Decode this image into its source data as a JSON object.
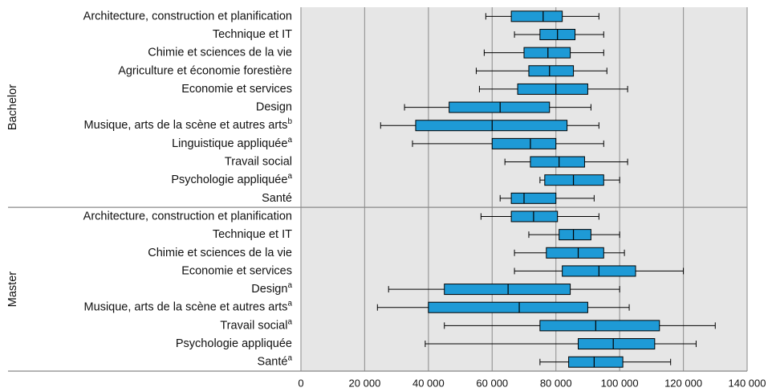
{
  "chart_data": {
    "type": "boxplot",
    "xlim": [
      0,
      140000
    ],
    "xticks": [
      0,
      {
        "value": 20000,
        "label": "20 000"
      },
      {
        "value": 40000,
        "label": "40 000"
      },
      {
        "value": 60000,
        "label": "60 000"
      },
      {
        "value": 80000,
        "label": "80 000"
      },
      {
        "value": 100000,
        "label": "100 000"
      },
      {
        "value": 120000,
        "label": "120 000"
      },
      {
        "value": 140000,
        "label": "140 000"
      }
    ],
    "grid": true,
    "color": "#1e9ad6",
    "groups": [
      {
        "name": "Bachelor",
        "categories": [
          "Architecture, construction et planification",
          "Technique et IT",
          "Chimie et sciences de la vie",
          "Agriculture et économie forestière",
          "Economie et services",
          "Design",
          "Musique, arts de la scène et autres arts",
          "Linguistique appliquée",
          "Travail social",
          "Psychologie appliquée",
          "Santé"
        ],
        "notes": [
          null,
          null,
          null,
          null,
          null,
          null,
          "b",
          "a",
          null,
          "a",
          null
        ],
        "boxes": [
          {
            "low": 58000,
            "q1": 66000,
            "median": 76000,
            "q3": 82000,
            "high": 93500
          },
          {
            "low": 67000,
            "q1": 75000,
            "median": 80500,
            "q3": 86000,
            "high": 95000
          },
          {
            "low": 57500,
            "q1": 70000,
            "median": 77500,
            "q3": 84500,
            "high": 95000
          },
          {
            "low": 55000,
            "q1": 71500,
            "median": 78000,
            "q3": 85500,
            "high": 96000
          },
          {
            "low": 56000,
            "q1": 68000,
            "median": 80000,
            "q3": 90000,
            "high": 102500
          },
          {
            "low": 32500,
            "q1": 46500,
            "median": 62500,
            "q3": 78000,
            "high": 91000
          },
          {
            "low": 25000,
            "q1": 36000,
            "median": 60000,
            "q3": 83500,
            "high": 93500
          },
          {
            "low": 35000,
            "q1": 60000,
            "median": 72000,
            "q3": 80000,
            "high": 95000
          },
          {
            "low": 64000,
            "q1": 72000,
            "median": 81000,
            "q3": 89000,
            "high": 102500
          },
          {
            "low": 75000,
            "q1": 76500,
            "median": 85500,
            "q3": 95000,
            "high": 100000
          },
          {
            "low": 62500,
            "q1": 66000,
            "median": 70000,
            "q3": 80000,
            "high": 92000
          }
        ]
      },
      {
        "name": "Master",
        "categories": [
          "Architecture, construction et planification",
          "Technique et IT",
          "Chimie et sciences de la vie",
          "Economie et services",
          "Design",
          "Musique, arts de la scène et autres arts",
          "Travail social",
          "Psychologie appliquée",
          "Santé"
        ],
        "notes": [
          null,
          null,
          null,
          null,
          "a",
          "a",
          "a",
          null,
          "a"
        ],
        "boxes": [
          {
            "low": 56500,
            "q1": 66000,
            "median": 73000,
            "q3": 80500,
            "high": 93500
          },
          {
            "low": 71500,
            "q1": 81000,
            "median": 85500,
            "q3": 91000,
            "high": 100000
          },
          {
            "low": 67000,
            "q1": 77000,
            "median": 87000,
            "q3": 95000,
            "high": 101500
          },
          {
            "low": 67000,
            "q1": 82000,
            "median": 93500,
            "q3": 105000,
            "high": 120000
          },
          {
            "low": 27500,
            "q1": 45000,
            "median": 65000,
            "q3": 84500,
            "high": 100000
          },
          {
            "low": 24000,
            "q1": 40000,
            "median": 68500,
            "q3": 90000,
            "high": 103000
          },
          {
            "low": 45000,
            "q1": 75000,
            "median": 92500,
            "q3": 112500,
            "high": 130000
          },
          {
            "low": 39000,
            "q1": 87000,
            "median": 98000,
            "q3": 111000,
            "high": 124000
          },
          {
            "low": 75000,
            "q1": 84000,
            "median": 92000,
            "q3": 101000,
            "high": 116000
          }
        ]
      }
    ]
  }
}
